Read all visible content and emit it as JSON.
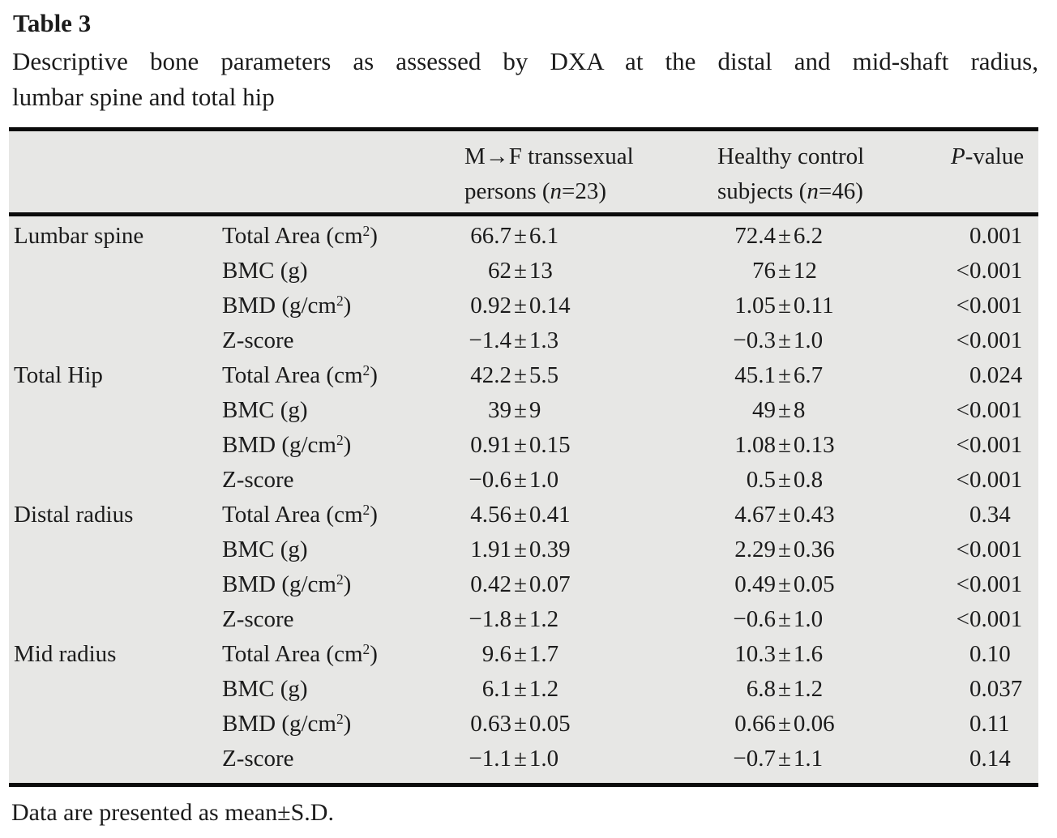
{
  "title": "Table 3",
  "caption": {
    "line1": "Descriptive bone parameters as assessed by DXA at the distal and mid-shaft radius,",
    "line2": "lumbar spine and total hip"
  },
  "footnote": "Data are presented as mean±S.D.",
  "colors": {
    "table_background": "#e7e7e5",
    "rule": "#0b0b0b",
    "text": "#1b1b1b",
    "page_background": "#ffffff"
  },
  "table": {
    "header": {
      "col3": [
        [
          {
            "t": "M→F transsexual"
          }
        ],
        [
          {
            "t": "persons ("
          },
          {
            "t": "n",
            "s": "i"
          },
          {
            "t": "=23)"
          }
        ]
      ],
      "col4": [
        [
          {
            "t": "Healthy control"
          }
        ],
        [
          {
            "t": "subjects ("
          },
          {
            "t": "n",
            "s": "i"
          },
          {
            "t": "=46)"
          }
        ]
      ],
      "col5": [
        [
          {
            "t": "P",
            "s": "i"
          },
          {
            "t": "-value"
          }
        ]
      ]
    },
    "groups": [
      {
        "region": "Lumbar spine",
        "rows": [
          {
            "param": [
              {
                "t": "Total Area (cm"
              },
              {
                "t": "2",
                "s": "sup"
              },
              {
                "t": ")"
              }
            ],
            "mf": "66.7±6.1",
            "control": "72.4±6.2",
            "p": "0.001"
          },
          {
            "param": [
              {
                "t": "BMC (g)"
              }
            ],
            "mf": "62±13",
            "control": "76±12",
            "p": "<0.001"
          },
          {
            "param": [
              {
                "t": "BMD (g/cm"
              },
              {
                "t": "2",
                "s": "sup"
              },
              {
                "t": ")"
              }
            ],
            "mf": "0.92±0.14",
            "control": "1.05±0.11",
            "p": "<0.001"
          },
          {
            "param": [
              {
                "t": "Z-score"
              }
            ],
            "mf": "−1.4±1.3",
            "control": "−0.3±1.0",
            "p": "<0.001"
          }
        ]
      },
      {
        "region": "Total Hip",
        "rows": [
          {
            "param": [
              {
                "t": "Total Area (cm"
              },
              {
                "t": "2",
                "s": "sup"
              },
              {
                "t": ")"
              }
            ],
            "mf": "42.2±5.5",
            "control": "45.1±6.7",
            "p": "0.024"
          },
          {
            "param": [
              {
                "t": "BMC (g)"
              }
            ],
            "mf": "39±9",
            "control": "49±8",
            "p": "<0.001"
          },
          {
            "param": [
              {
                "t": "BMD (g/cm"
              },
              {
                "t": "2",
                "s": "sup"
              },
              {
                "t": ")"
              }
            ],
            "mf": "0.91±0.15",
            "control": "1.08±0.13",
            "p": "<0.001"
          },
          {
            "param": [
              {
                "t": "Z-score"
              }
            ],
            "mf": "−0.6±1.0",
            "control": "0.5±0.8",
            "p": "<0.001"
          }
        ]
      },
      {
        "region": "Distal radius",
        "rows": [
          {
            "param": [
              {
                "t": "Total Area (cm"
              },
              {
                "t": "2",
                "s": "sup"
              },
              {
                "t": ")"
              }
            ],
            "mf": "4.56±0.41",
            "control": "4.67±0.43",
            "p": "0.34"
          },
          {
            "param": [
              {
                "t": "BMC (g)"
              }
            ],
            "mf": "1.91±0.39",
            "control": "2.29±0.36",
            "p": "<0.001"
          },
          {
            "param": [
              {
                "t": "BMD (g/cm"
              },
              {
                "t": "2",
                "s": "sup"
              },
              {
                "t": ")"
              }
            ],
            "mf": "0.42±0.07",
            "control": "0.49±0.05",
            "p": "<0.001"
          },
          {
            "param": [
              {
                "t": "Z-score"
              }
            ],
            "mf": "−1.8±1.2",
            "control": "−0.6±1.0",
            "p": "<0.001"
          }
        ]
      },
      {
        "region": "Mid radius",
        "rows": [
          {
            "param": [
              {
                "t": "Total Area (cm"
              },
              {
                "t": "2",
                "s": "sup"
              },
              {
                "t": ")"
              }
            ],
            "mf": "9.6±1.7",
            "control": "10.3±1.6",
            "p": "0.10"
          },
          {
            "param": [
              {
                "t": "BMC (g)"
              }
            ],
            "mf": "6.1±1.2",
            "control": "6.8±1.2",
            "p": "0.037"
          },
          {
            "param": [
              {
                "t": "BMD (g/cm"
              },
              {
                "t": "2",
                "s": "sup"
              },
              {
                "t": ")"
              }
            ],
            "mf": "0.63±0.05",
            "control": "0.66±0.06",
            "p": "0.11"
          },
          {
            "param": [
              {
                "t": "Z-score"
              }
            ],
            "mf": "−1.1±1.0",
            "control": "−0.7±1.1",
            "p": "0.14"
          }
        ]
      }
    ]
  }
}
